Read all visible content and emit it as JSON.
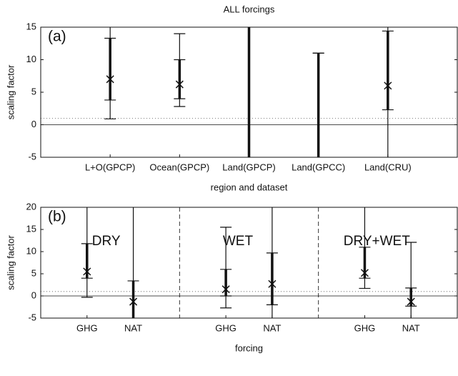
{
  "chart_data": [
    {
      "type": "errorbar",
      "title": "ALL forcings",
      "panel_label": "(a)",
      "y_label": "scaling factor",
      "x_label": "region and dataset",
      "categories": [
        "L+O(GPCP)",
        "Ocean(GPCP)",
        "Land(GPCP)",
        "Land(GPCC)",
        "Land(CRU)"
      ],
      "best": [
        7,
        6.2,
        null,
        null,
        6
      ],
      "inner_low": [
        3.8,
        4,
        -5,
        -5,
        2.3
      ],
      "inner_high": [
        13.3,
        10,
        15,
        11,
        14.4
      ],
      "outer_low": [
        0.9,
        2.8,
        -5,
        -5,
        -5
      ],
      "outer_high": [
        15,
        14,
        15,
        11,
        15
      ],
      "ylim": [
        -5,
        15
      ],
      "yticks": [
        -5,
        0,
        5,
        10,
        15
      ],
      "reference_lines": [
        {
          "value": 0,
          "style": "solid"
        },
        {
          "value": 1,
          "style": "dotted"
        }
      ],
      "color": "#111111"
    },
    {
      "type": "errorbar",
      "panel_label": "(b)",
      "y_label": "scaling factor",
      "x_label": "forcing",
      "groups": [
        "DRY",
        "WET",
        "DRY+WET"
      ],
      "categories": [
        "GHG",
        "NAT",
        "GHG",
        "NAT",
        "GHG",
        "NAT"
      ],
      "best": [
        5.5,
        -1.3,
        1.5,
        2.7,
        5.2,
        -1.3
      ],
      "inner_low": [
        4,
        -5,
        0,
        -2,
        4,
        -2.3
      ],
      "inner_high": [
        11.8,
        3.4,
        6,
        9.7,
        11,
        1.8
      ],
      "outer_low": [
        -0.3,
        -5,
        -2.7,
        -5,
        1.7,
        -5
      ],
      "outer_high": [
        20,
        20,
        15.5,
        20,
        20,
        12.1
      ],
      "ylim": [
        -5,
        20
      ],
      "yticks": [
        -5,
        0,
        5,
        10,
        15,
        20
      ],
      "reference_lines": [
        {
          "value": 0,
          "style": "solid"
        },
        {
          "value": 1,
          "style": "dotted"
        }
      ],
      "color": "#111111"
    }
  ]
}
